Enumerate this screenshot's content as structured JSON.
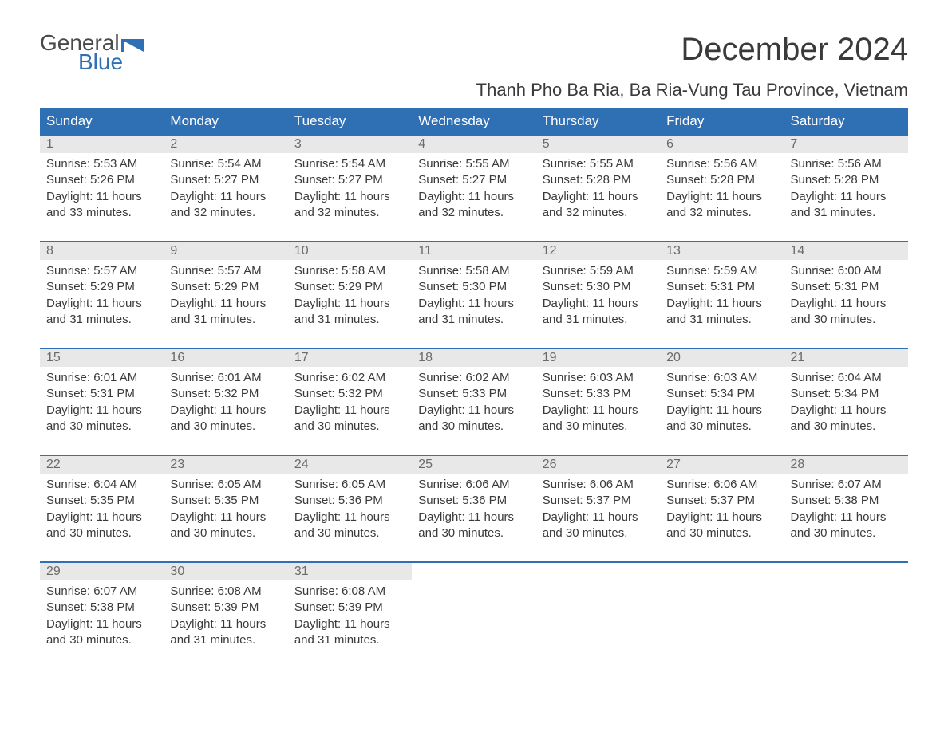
{
  "logo": {
    "text1": "General",
    "text2": "Blue",
    "flag_color": "#2f6fb4"
  },
  "title": "December 2024",
  "location": "Thanh Pho Ba Ria, Ba Ria-Vung Tau Province, Vietnam",
  "colors": {
    "header_bg": "#2f6fb4",
    "header_text": "#ffffff",
    "daynum_bg": "#e8e8e8",
    "daynum_text": "#6a6a6a",
    "body_text": "#3a3a3a",
    "row_border": "#2f6fb4"
  },
  "weekdays": [
    "Sunday",
    "Monday",
    "Tuesday",
    "Wednesday",
    "Thursday",
    "Friday",
    "Saturday"
  ],
  "weeks": [
    [
      {
        "n": "1",
        "sunrise": "5:53 AM",
        "sunset": "5:26 PM",
        "daylight": "11 hours and 33 minutes."
      },
      {
        "n": "2",
        "sunrise": "5:54 AM",
        "sunset": "5:27 PM",
        "daylight": "11 hours and 32 minutes."
      },
      {
        "n": "3",
        "sunrise": "5:54 AM",
        "sunset": "5:27 PM",
        "daylight": "11 hours and 32 minutes."
      },
      {
        "n": "4",
        "sunrise": "5:55 AM",
        "sunset": "5:27 PM",
        "daylight": "11 hours and 32 minutes."
      },
      {
        "n": "5",
        "sunrise": "5:55 AM",
        "sunset": "5:28 PM",
        "daylight": "11 hours and 32 minutes."
      },
      {
        "n": "6",
        "sunrise": "5:56 AM",
        "sunset": "5:28 PM",
        "daylight": "11 hours and 32 minutes."
      },
      {
        "n": "7",
        "sunrise": "5:56 AM",
        "sunset": "5:28 PM",
        "daylight": "11 hours and 31 minutes."
      }
    ],
    [
      {
        "n": "8",
        "sunrise": "5:57 AM",
        "sunset": "5:29 PM",
        "daylight": "11 hours and 31 minutes."
      },
      {
        "n": "9",
        "sunrise": "5:57 AM",
        "sunset": "5:29 PM",
        "daylight": "11 hours and 31 minutes."
      },
      {
        "n": "10",
        "sunrise": "5:58 AM",
        "sunset": "5:29 PM",
        "daylight": "11 hours and 31 minutes."
      },
      {
        "n": "11",
        "sunrise": "5:58 AM",
        "sunset": "5:30 PM",
        "daylight": "11 hours and 31 minutes."
      },
      {
        "n": "12",
        "sunrise": "5:59 AM",
        "sunset": "5:30 PM",
        "daylight": "11 hours and 31 minutes."
      },
      {
        "n": "13",
        "sunrise": "5:59 AM",
        "sunset": "5:31 PM",
        "daylight": "11 hours and 31 minutes."
      },
      {
        "n": "14",
        "sunrise": "6:00 AM",
        "sunset": "5:31 PM",
        "daylight": "11 hours and 30 minutes."
      }
    ],
    [
      {
        "n": "15",
        "sunrise": "6:01 AM",
        "sunset": "5:31 PM",
        "daylight": "11 hours and 30 minutes."
      },
      {
        "n": "16",
        "sunrise": "6:01 AM",
        "sunset": "5:32 PM",
        "daylight": "11 hours and 30 minutes."
      },
      {
        "n": "17",
        "sunrise": "6:02 AM",
        "sunset": "5:32 PM",
        "daylight": "11 hours and 30 minutes."
      },
      {
        "n": "18",
        "sunrise": "6:02 AM",
        "sunset": "5:33 PM",
        "daylight": "11 hours and 30 minutes."
      },
      {
        "n": "19",
        "sunrise": "6:03 AM",
        "sunset": "5:33 PM",
        "daylight": "11 hours and 30 minutes."
      },
      {
        "n": "20",
        "sunrise": "6:03 AM",
        "sunset": "5:34 PM",
        "daylight": "11 hours and 30 minutes."
      },
      {
        "n": "21",
        "sunrise": "6:04 AM",
        "sunset": "5:34 PM",
        "daylight": "11 hours and 30 minutes."
      }
    ],
    [
      {
        "n": "22",
        "sunrise": "6:04 AM",
        "sunset": "5:35 PM",
        "daylight": "11 hours and 30 minutes."
      },
      {
        "n": "23",
        "sunrise": "6:05 AM",
        "sunset": "5:35 PM",
        "daylight": "11 hours and 30 minutes."
      },
      {
        "n": "24",
        "sunrise": "6:05 AM",
        "sunset": "5:36 PM",
        "daylight": "11 hours and 30 minutes."
      },
      {
        "n": "25",
        "sunrise": "6:06 AM",
        "sunset": "5:36 PM",
        "daylight": "11 hours and 30 minutes."
      },
      {
        "n": "26",
        "sunrise": "6:06 AM",
        "sunset": "5:37 PM",
        "daylight": "11 hours and 30 minutes."
      },
      {
        "n": "27",
        "sunrise": "6:06 AM",
        "sunset": "5:37 PM",
        "daylight": "11 hours and 30 minutes."
      },
      {
        "n": "28",
        "sunrise": "6:07 AM",
        "sunset": "5:38 PM",
        "daylight": "11 hours and 30 minutes."
      }
    ],
    [
      {
        "n": "29",
        "sunrise": "6:07 AM",
        "sunset": "5:38 PM",
        "daylight": "11 hours and 30 minutes."
      },
      {
        "n": "30",
        "sunrise": "6:08 AM",
        "sunset": "5:39 PM",
        "daylight": "11 hours and 31 minutes."
      },
      {
        "n": "31",
        "sunrise": "6:08 AM",
        "sunset": "5:39 PM",
        "daylight": "11 hours and 31 minutes."
      },
      null,
      null,
      null,
      null
    ]
  ],
  "labels": {
    "sunrise": "Sunrise: ",
    "sunset": "Sunset: ",
    "daylight": "Daylight: "
  }
}
